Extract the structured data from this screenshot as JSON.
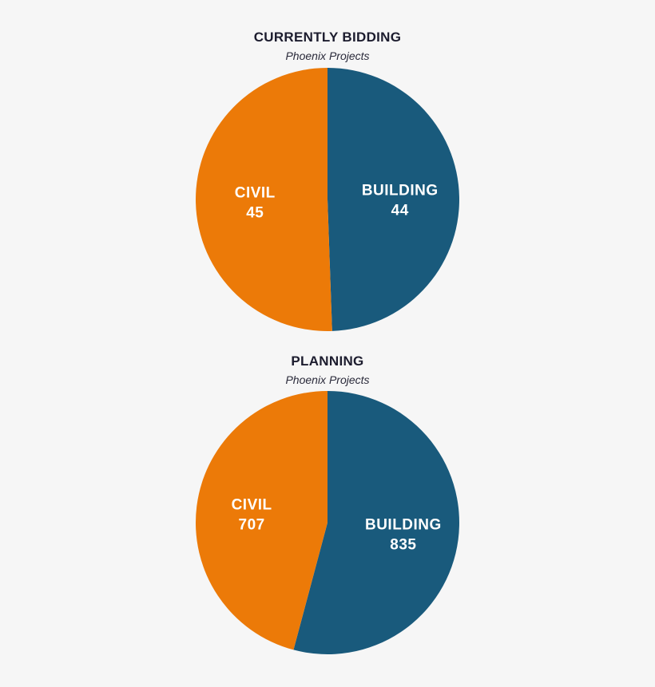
{
  "chart_data": [
    {
      "type": "pie",
      "title": "CURRENTLY BIDDING",
      "subtitle": "Phoenix Projects",
      "slices": [
        {
          "name": "BUILDING",
          "value": 44,
          "color": "#195a7c"
        },
        {
          "name": "CIVIL",
          "value": 45,
          "color": "#ec7a08"
        }
      ]
    },
    {
      "type": "pie",
      "title": "PLANNING",
      "subtitle": "Phoenix Projects",
      "slices": [
        {
          "name": "BUILDING",
          "value": 835,
          "color": "#195a7c"
        },
        {
          "name": "CIVIL",
          "value": 707,
          "color": "#ec7a08"
        }
      ]
    }
  ]
}
